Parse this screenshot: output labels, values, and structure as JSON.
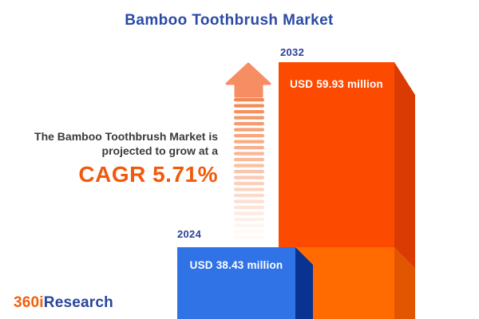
{
  "title": "Bamboo Toothbrush Market",
  "statement": {
    "line1": "The Bamboo Toothbrush Market is",
    "line2": "projected to grow at a",
    "cagr": "CAGR 5.71%"
  },
  "chart_data": {
    "type": "bar",
    "title": "Bamboo Toothbrush Market",
    "categories": [
      "2024",
      "2032"
    ],
    "values": [
      38.43,
      59.93
    ],
    "unit": "USD million",
    "value_labels": [
      "USD 38.43 million",
      "USD 59.93 million"
    ],
    "cagr_percent": 5.71,
    "grid": false,
    "legend_position": "none",
    "style": "3d-bars with upward fading growth arrow"
  },
  "bars": [
    {
      "year": "2024",
      "label": "USD 38.43 million"
    },
    {
      "year": "2032",
      "label": "USD 59.93 million"
    }
  ],
  "logo": {
    "part1": "360i",
    "part2": "Research"
  },
  "icons": {
    "arrow": "growth-arrow-up"
  },
  "colors": {
    "title_navy": "#2B4AA5",
    "year_navy": "#2B3F96",
    "body_text": "#3A3A3A",
    "cagr_orange": "#F2590C",
    "bar2024_front": "#2F73E6",
    "bar2024_side": "#093390",
    "bar2032_front": "#FC4A00",
    "bar2032_front_lower": "#FF6B00",
    "bar2032_side": "#D93B03",
    "bar2032_side_lower": "#E25602",
    "arrow_head": "#F78E63",
    "arrow_stripe": "#F4814A",
    "label_text": "#FFFFFF",
    "logo_orange": "#F2600D",
    "logo_navy": "#27459E"
  }
}
